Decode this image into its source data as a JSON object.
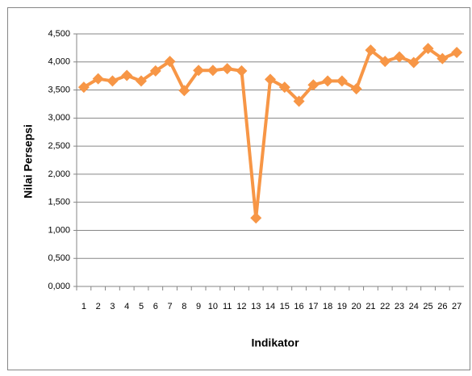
{
  "chart_data": {
    "type": "line",
    "xlabel": "Indikator",
    "ylabel": "Nilai Persepsi",
    "categories": [
      "1",
      "2",
      "3",
      "4",
      "5",
      "6",
      "7",
      "8",
      "9",
      "10",
      "11",
      "12",
      "13",
      "14",
      "15",
      "16",
      "17",
      "18",
      "19",
      "20",
      "21",
      "22",
      "23",
      "24",
      "25",
      "26",
      "27"
    ],
    "series": [
      {
        "color": "#f79646",
        "values": [
          3.55,
          3.7,
          3.66,
          3.76,
          3.66,
          3.84,
          4.01,
          3.49,
          3.85,
          3.85,
          3.88,
          3.84,
          1.22,
          3.69,
          3.55,
          3.3,
          3.59,
          3.66,
          3.66,
          3.52,
          4.21,
          4.01,
          4.09,
          3.99,
          4.24,
          4.06,
          4.17
        ]
      }
    ],
    "ylim": [
      0,
      4.5
    ],
    "yticks": [
      {
        "value": 0,
        "label": "0,000"
      },
      {
        "value": 0.5,
        "label": "0,500"
      },
      {
        "value": 1,
        "label": "1,000"
      },
      {
        "value": 1.5,
        "label": "1,500"
      },
      {
        "value": 2,
        "label": "2,000"
      },
      {
        "value": 2.5,
        "label": "2,500"
      },
      {
        "value": 3,
        "label": "3,000"
      },
      {
        "value": 3.5,
        "label": "3,500"
      },
      {
        "value": 4,
        "label": "4,000"
      },
      {
        "value": 4.5,
        "label": "4,500"
      }
    ],
    "grid": true
  }
}
